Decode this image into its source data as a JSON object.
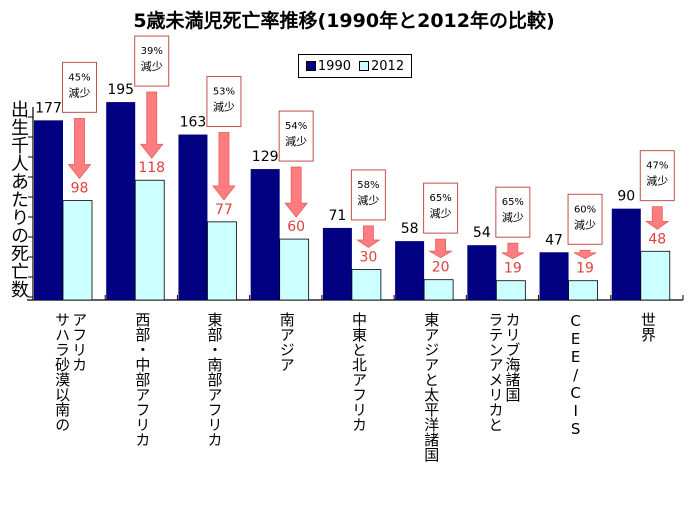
{
  "chart_data": {
    "type": "bar",
    "title": "5歳未満児死亡率推移(1990年と2012年の比較)",
    "xlabel": "",
    "ylabel": "出生千人あたりの死亡数",
    "ylim": [
      0,
      200
    ],
    "grid": false,
    "legend_position": "top-center",
    "categories": [
      "サハラ砂漠以南のアフリカ",
      "西部・中部アフリカ",
      "東部・南部アフリカ",
      "南アジア",
      "中東と北アフリカ",
      "東アジアと太平洋諸国",
      "ラテンアメリカとカリブ海諸国",
      "CEE/CIS",
      "世界"
    ],
    "category_lines": [
      [
        "アフリカ",
        "サハラ砂漠以南の"
      ],
      [
        "西部・中部アフリカ"
      ],
      [
        "東部・南部アフリカ"
      ],
      [
        "南アジア"
      ],
      [
        "中東と北アフリカ"
      ],
      [
        "東アジアと太平洋諸国"
      ],
      [
        "カリブ海諸国",
        "ラテンアメリカと"
      ],
      [
        "CEE/CIS"
      ],
      [
        "世界"
      ]
    ],
    "series": [
      {
        "name": "1990",
        "color": "#000080",
        "values": [
          177,
          195,
          163,
          129,
          71,
          58,
          54,
          47,
          90
        ]
      },
      {
        "name": "2012",
        "color": "#ccffff",
        "values": [
          98,
          118,
          77,
          60,
          30,
          20,
          19,
          19,
          48
        ]
      }
    ],
    "annotations": [
      {
        "category": "サハラ砂漠以南のアフリカ",
        "percent": "45%",
        "text": "減少"
      },
      {
        "category": "西部・中部アフリカ",
        "percent": "39%",
        "text": "減少"
      },
      {
        "category": "東部・南部アフリカ",
        "percent": "53%",
        "text": "減少"
      },
      {
        "category": "南アジア",
        "percent": "54%",
        "text": "減少"
      },
      {
        "category": "中東と北アフリカ",
        "percent": "58%",
        "text": "減少"
      },
      {
        "category": "東アジアと太平洋諸国",
        "percent": "65%",
        "text": "減少"
      },
      {
        "category": "ラテンアメリカとカリブ海諸国",
        "percent": "65%",
        "text": "減少"
      },
      {
        "category": "CEE/CIS",
        "percent": "60%",
        "text": "減少"
      },
      {
        "category": "世界",
        "percent": "47%",
        "text": "減少"
      }
    ],
    "colors": {
      "arrow": "#ff7c80",
      "annotation_border": "#c0504d",
      "value_2012_text": "#e0403a"
    }
  }
}
